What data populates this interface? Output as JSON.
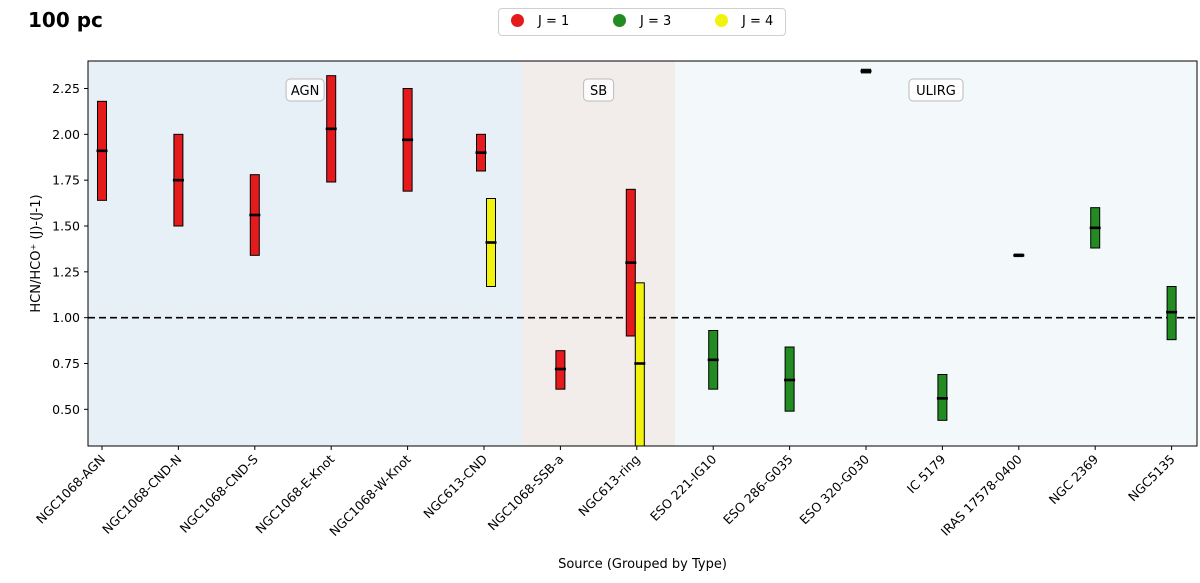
{
  "page": {
    "title": "100 pc"
  },
  "chart_data": {
    "type": "bar",
    "title": "",
    "xlabel": "Source (Grouped by Type)",
    "ylabel": "HCN/HCO⁺ (J)-(J-1)",
    "ylim": [
      0.3,
      2.4
    ],
    "yticks": [
      "0.50",
      "0.75",
      "1.00",
      "1.25",
      "1.50",
      "1.75",
      "2.00",
      "2.25"
    ],
    "reference_line": 1.0,
    "grid": false,
    "legend_position": "top-center",
    "legend": [
      {
        "label": "J = 1",
        "color": "#e41a1c"
      },
      {
        "label": "J = 3",
        "color": "#228b22"
      },
      {
        "label": "J = 4",
        "color": "#f2f20f"
      }
    ],
    "categories": [
      "NGC1068-AGN",
      "NGC1068-CND-N",
      "NGC1068-CND-S",
      "NGC1068-E-Knot",
      "NGC1068-W-Knot",
      "NGC613-CND",
      "NGC1068-SSB-a",
      "NGC613-ring",
      "ESO 221-IG10",
      "ESO 286-G035",
      "ESO 320-G030",
      "IC 5179",
      "IRAS 17578-0400",
      "NGC 2369",
      "NGC5135"
    ],
    "regions": [
      {
        "label": "AGN",
        "from": 0,
        "to": 5,
        "color": "#e7eff7"
      },
      {
        "label": "SB",
        "from": 6,
        "to": 7,
        "color": "#f2ecea"
      },
      {
        "label": "ULIRG",
        "from": 8,
        "to": 14,
        "color": "#f3f8fb"
      }
    ],
    "series": [
      {
        "name": "J = 1",
        "color": "#e41a1c",
        "points": [
          {
            "category": "NGC1068-AGN",
            "value": 1.91,
            "low": 1.64,
            "high": 2.18
          },
          {
            "category": "NGC1068-CND-N",
            "value": 1.75,
            "low": 1.5,
            "high": 2.0
          },
          {
            "category": "NGC1068-CND-S",
            "value": 1.56,
            "low": 1.34,
            "high": 1.78
          },
          {
            "category": "NGC1068-E-Knot",
            "value": 2.03,
            "low": 1.74,
            "high": 2.32
          },
          {
            "category": "NGC1068-W-Knot",
            "value": 1.97,
            "low": 1.69,
            "high": 2.25
          },
          {
            "category": "NGC613-CND",
            "value": 1.9,
            "low": 1.8,
            "high": 2.0
          },
          {
            "category": "NGC1068-SSB-a",
            "value": 0.72,
            "low": 0.61,
            "high": 0.82
          },
          {
            "category": "NGC613-ring",
            "value": 1.3,
            "low": 0.9,
            "high": 1.7
          }
        ]
      },
      {
        "name": "J = 3",
        "color": "#228b22",
        "points": [
          {
            "category": "ESO 221-IG10",
            "value": 0.77,
            "low": 0.61,
            "high": 0.93
          },
          {
            "category": "ESO 286-G035",
            "value": 0.66,
            "low": 0.49,
            "high": 0.84
          },
          {
            "category": "ESO 320-G030",
            "value": 2.345,
            "low": 2.335,
            "high": 2.355
          },
          {
            "category": "IC 5179",
            "value": 0.56,
            "low": 0.44,
            "high": 0.69
          },
          {
            "category": "IRAS 17578-0400",
            "value": 1.34,
            "low": 1.34,
            "high": 1.34
          },
          {
            "category": "NGC 2369",
            "value": 1.49,
            "low": 1.38,
            "high": 1.6
          },
          {
            "category": "NGC5135",
            "value": 1.03,
            "low": 0.88,
            "high": 1.17
          }
        ]
      },
      {
        "name": "J = 4",
        "color": "#f2f20f",
        "points": [
          {
            "category": "NGC613-CND",
            "value": 1.41,
            "low": 1.17,
            "high": 1.65
          },
          {
            "category": "NGC613-ring",
            "value": 0.75,
            "low": 0.3,
            "high": 1.19
          }
        ]
      }
    ]
  }
}
